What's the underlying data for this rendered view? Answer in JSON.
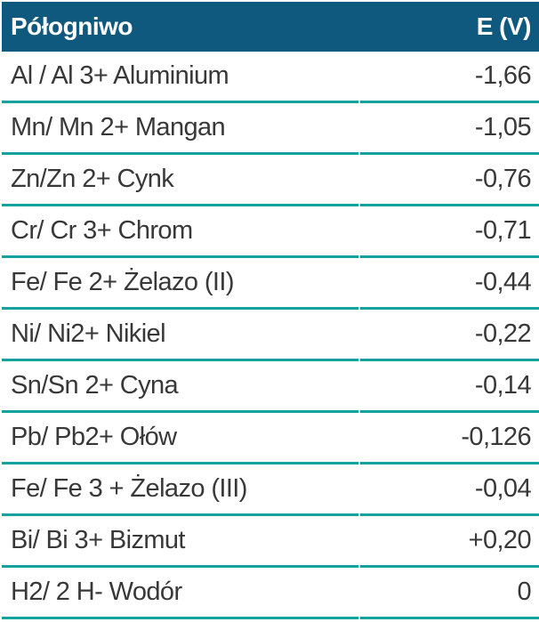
{
  "colors": {
    "background": "#FFFFFF",
    "header_bg": "#0F597F",
    "header_text": "#FFFFFF",
    "row_divider": "#12A49C",
    "divider_notch": "#B5E4E0",
    "body_text": "#383838"
  },
  "table": {
    "header": {
      "half_cell_label": "Półogniwo",
      "potential_label": "E (V)"
    },
    "rows": [
      {
        "half_cell": "Al / Al 3+ Aluminium",
        "potential": "-1,66"
      },
      {
        "half_cell": "Mn/ Mn 2+ Mangan",
        "potential": "-1,05"
      },
      {
        "half_cell": "Zn/Zn 2+ Cynk",
        "potential": "-0,76"
      },
      {
        "half_cell": "Cr/ Cr 3+ Chrom",
        "potential": "-0,71"
      },
      {
        "half_cell": "Fe/ Fe 2+ Żelazo (II)",
        "potential": "-0,44"
      },
      {
        "half_cell": "Ni/ Ni2+ Nikiel",
        "potential": "-0,22"
      },
      {
        "half_cell": "Sn/Sn 2+ Cyna",
        "potential": "-0,14"
      },
      {
        "half_cell": "Pb/ Pb2+ Ołów",
        "potential": "-0,126"
      },
      {
        "half_cell": "Fe/ Fe 3 + Żelazo (III)",
        "potential": "-0,04"
      },
      {
        "half_cell": "Bi/ Bi 3+ Bizmut",
        "potential": "+0,20"
      },
      {
        "half_cell": "H2/ 2 H- Wodór",
        "potential": "0"
      }
    ]
  },
  "chart_data": {
    "type": "table",
    "title": "",
    "columns": [
      "Półogniwo",
      "E (V)"
    ],
    "rows": [
      [
        "Al / Al 3+ Aluminium",
        "-1,66"
      ],
      [
        "Mn/ Mn 2+ Mangan",
        "-1,05"
      ],
      [
        "Zn/Zn 2+ Cynk",
        "-0,76"
      ],
      [
        "Cr/ Cr 3+ Chrom",
        "-0,71"
      ],
      [
        "Fe/ Fe 2+ Żelazo (II)",
        "-0,44"
      ],
      [
        "Ni/ Ni2+ Nikiel",
        "-0,22"
      ],
      [
        "Sn/Sn 2+ Cyna",
        "-0,14"
      ],
      [
        "Pb/ Pb2+ Ołów",
        "-0,126"
      ],
      [
        "Fe/ Fe 3 + Żelazo (III)",
        "-0,04"
      ],
      [
        "Bi/ Bi 3+ Bizmut",
        "+0,20"
      ],
      [
        "H2/ 2 H- Wodór",
        "0"
      ]
    ],
    "values_numeric": [
      -1.66,
      -1.05,
      -0.76,
      -0.71,
      -0.44,
      -0.22,
      -0.14,
      -0.126,
      -0.04,
      0.2,
      0
    ]
  }
}
